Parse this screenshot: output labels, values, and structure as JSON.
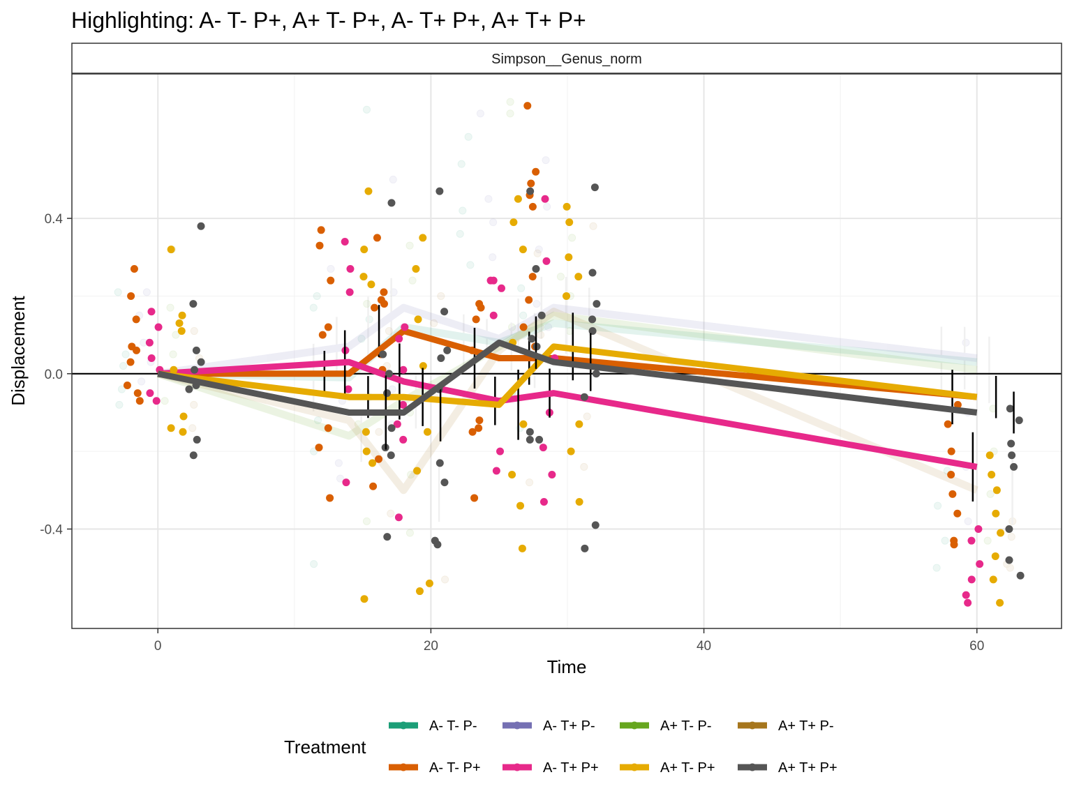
{
  "chart_data": {
    "type": "line",
    "title": "Highlighting: A- T- P+, A+ T- P+, A- T+ P+, A+ T+ P+",
    "facet_label": "Simpson__Genus_norm",
    "xlabel": "Time",
    "ylabel": "Displacement",
    "xlim": [
      -6.3,
      66.2
    ],
    "ylim": [
      -0.656,
      0.772
    ],
    "x_ticks": [
      0,
      20,
      40,
      60
    ],
    "x_tick_labels": [
      "0",
      "20",
      "40",
      "60"
    ],
    "y_ticks": [
      0.4,
      0.0,
      -0.4
    ],
    "y_tick_labels": [
      "0.4",
      "0.0",
      "-0.4"
    ],
    "grid": true,
    "hline_y": 0,
    "legend_title": "Treatment",
    "legend_position": "bottom",
    "series": [
      {
        "name": "A- T- P-",
        "color": "#1b9e77",
        "highlight": false,
        "offset": -2.6,
        "x": [
          0,
          14,
          18,
          25,
          29,
          60
        ],
        "y": [
          0,
          -0.01,
          0.12,
          0.08,
          0.13,
          0.03
        ],
        "points": [
          0.21,
          0.05,
          0.02,
          -0.04,
          -0.08,
          -0.12,
          0.2,
          0.17,
          -0.2,
          -0.49,
          0.09,
          0.14,
          -0.06,
          0.68,
          0.61,
          0.54,
          0.42,
          0.36,
          0.28,
          0.22,
          0.15,
          0.1,
          -0.05,
          -0.14,
          -0.25,
          -0.34,
          -0.43,
          -0.5
        ]
      },
      {
        "name": "A- T+ P-",
        "color": "#7570b3",
        "highlight": false,
        "offset": -0.9,
        "x": [
          0,
          14,
          18,
          25,
          29,
          60
        ],
        "y": [
          0,
          0.07,
          0.17,
          0.09,
          0.17,
          0.04
        ],
        "points": [
          0.21,
          0.15,
          0.08,
          0.03,
          -0.02,
          -0.07,
          -0.23,
          -0.27,
          0.27,
          0.21,
          0.1,
          -0.04,
          -0.13,
          0.5,
          0.45,
          0.39,
          0.3,
          0.67,
          0.55,
          0.43,
          0.32,
          0.18,
          0.12,
          0.08,
          -0.1,
          -0.24,
          -0.38
        ]
      },
      {
        "name": "A+ T- P-",
        "color": "#66a61e",
        "highlight": false,
        "offset": 0.9,
        "x": [
          0,
          14,
          18,
          25,
          29,
          60
        ],
        "y": [
          0,
          -0.16,
          -0.07,
          0.07,
          0.15,
          0.01
        ],
        "points": [
          0.32,
          0.17,
          0.1,
          0.05,
          -0.07,
          -0.13,
          -0.38,
          0.25,
          0.18,
          -0.1,
          -0.26,
          -0.41,
          0.33,
          0.24,
          0.12,
          -0.05,
          0.7,
          0.67,
          0.35,
          0.25,
          0.2,
          0.11,
          0.06,
          -0.09,
          -0.2,
          -0.31,
          -0.43
        ]
      },
      {
        "name": "A+ T+ P-",
        "color": "#a6761d",
        "highlight": false,
        "offset": 2.6,
        "x": [
          0,
          14,
          18,
          25,
          29,
          60
        ],
        "y": [
          0,
          -0.12,
          -0.3,
          0.06,
          0.16,
          -0.3
        ],
        "points": [
          0.11,
          0.04,
          -0.02,
          -0.08,
          -0.14,
          0.11,
          0.02,
          -0.15,
          -0.36,
          -0.53,
          0.2,
          0.13,
          -0.06,
          -0.28,
          0.31,
          0.12,
          0.1,
          -0.11,
          0.38,
          0.01,
          -0.24,
          -0.38,
          -0.42,
          -0.49,
          -0.5
        ]
      },
      {
        "name": "A- T- P+",
        "color": "#d95f02",
        "highlight": true,
        "offset": -1.8,
        "x": [
          0,
          14,
          18,
          25,
          29,
          60
        ],
        "y": [
          0,
          0,
          0.11,
          0.04,
          0.04,
          -0.06
        ],
        "points": [
          0.14,
          0.07,
          0.06,
          0.03,
          -0.03,
          -0.05,
          -0.07,
          0.27,
          0.2,
          0.12,
          0.1,
          -0.14,
          -0.19,
          -0.32,
          0.37,
          0.33,
          0.24,
          0.21,
          0.18,
          -0.22,
          -0.29,
          0.35,
          0.19,
          0.17,
          0.05,
          0.01,
          -0.12,
          -0.15,
          0.18,
          0.17,
          0.14,
          0.06,
          -0.14,
          -0.32,
          0.69,
          0.52,
          0.49,
          0.46,
          0.43,
          0.25,
          0.19,
          0.12,
          0.07,
          -0.08,
          -0.13,
          -0.2,
          -0.26,
          -0.31,
          -0.36,
          -0.43,
          -0.44
        ]
      },
      {
        "name": "A- T+ P+",
        "color": "#e7298a",
        "highlight": true,
        "offset": -0.3,
        "x": [
          0,
          14,
          18,
          25,
          29,
          60
        ],
        "y": [
          0,
          0.03,
          -0.02,
          -0.07,
          -0.05,
          -0.24
        ],
        "points": [
          0.16,
          0.12,
          0.08,
          0.04,
          0.01,
          -0.05,
          -0.07,
          -0.28,
          0.34,
          0.27,
          0.21,
          0.06,
          -0.04,
          -0.13,
          -0.17,
          -0.37,
          0.12,
          0.09,
          0.01,
          -0.08,
          0.24,
          0.22,
          -0.2,
          -0.25,
          0.24,
          0.15,
          0.04,
          -0.1,
          -0.19,
          0.45,
          0.29,
          -0.26,
          -0.33,
          -0.4,
          -0.43,
          -0.49,
          -0.53,
          -0.57,
          -0.59
        ]
      },
      {
        "name": "A+ T- P+",
        "color": "#e6ab02",
        "highlight": true,
        "offset": 1.4,
        "x": [
          0,
          14,
          18,
          25,
          29,
          60
        ],
        "y": [
          0,
          -0.06,
          -0.06,
          -0.08,
          0.07,
          -0.06
        ],
        "points": [
          0.15,
          0.13,
          0.11,
          0.01,
          -0.11,
          -0.14,
          -0.15,
          0.32,
          0.25,
          0.23,
          -0.15,
          -0.2,
          -0.23,
          -0.58,
          0.47,
          0.32,
          0.27,
          0.02,
          -0.15,
          -0.25,
          -0.54,
          -0.56,
          0.35,
          0.14,
          -0.13,
          -0.26,
          -0.34,
          -0.45,
          0.45,
          0.39,
          0.32,
          0.08,
          -0.2,
          -0.33,
          0.43,
          0.39,
          0.3,
          0.25,
          0.2,
          -0.13,
          -0.21,
          -0.26,
          -0.3,
          -0.36,
          -0.41,
          -0.47,
          -0.53,
          -0.59
        ]
      },
      {
        "name": "A+ T+ P+",
        "color": "#555555",
        "highlight": true,
        "offset": 2.7,
        "x": [
          0,
          14,
          18,
          25,
          29,
          60
        ],
        "y": [
          0,
          -0.1,
          -0.1,
          0.08,
          0.03,
          -0.1
        ],
        "points": [
          0.38,
          0.03,
          0.01,
          -0.04,
          -0.17,
          -0.21,
          0.18,
          0.06,
          -0.03,
          -0.14,
          -0.19,
          -0.21,
          -0.42,
          0.44,
          0.05,
          0,
          -0.05,
          -0.23,
          -0.28,
          -0.43,
          -0.44,
          0.47,
          0.16,
          0.06,
          0.04,
          -0.04,
          -0.15,
          -0.17,
          0.47,
          0.27,
          0.15,
          0.09,
          0.07,
          -0.17,
          -0.39,
          -0.45,
          0.48,
          0.26,
          0.18,
          0.14,
          0.11,
          0,
          -0.06,
          -0.09,
          -0.12,
          -0.18,
          -0.21,
          -0.24,
          -0.4,
          -0.48,
          -0.52
        ]
      }
    ]
  }
}
